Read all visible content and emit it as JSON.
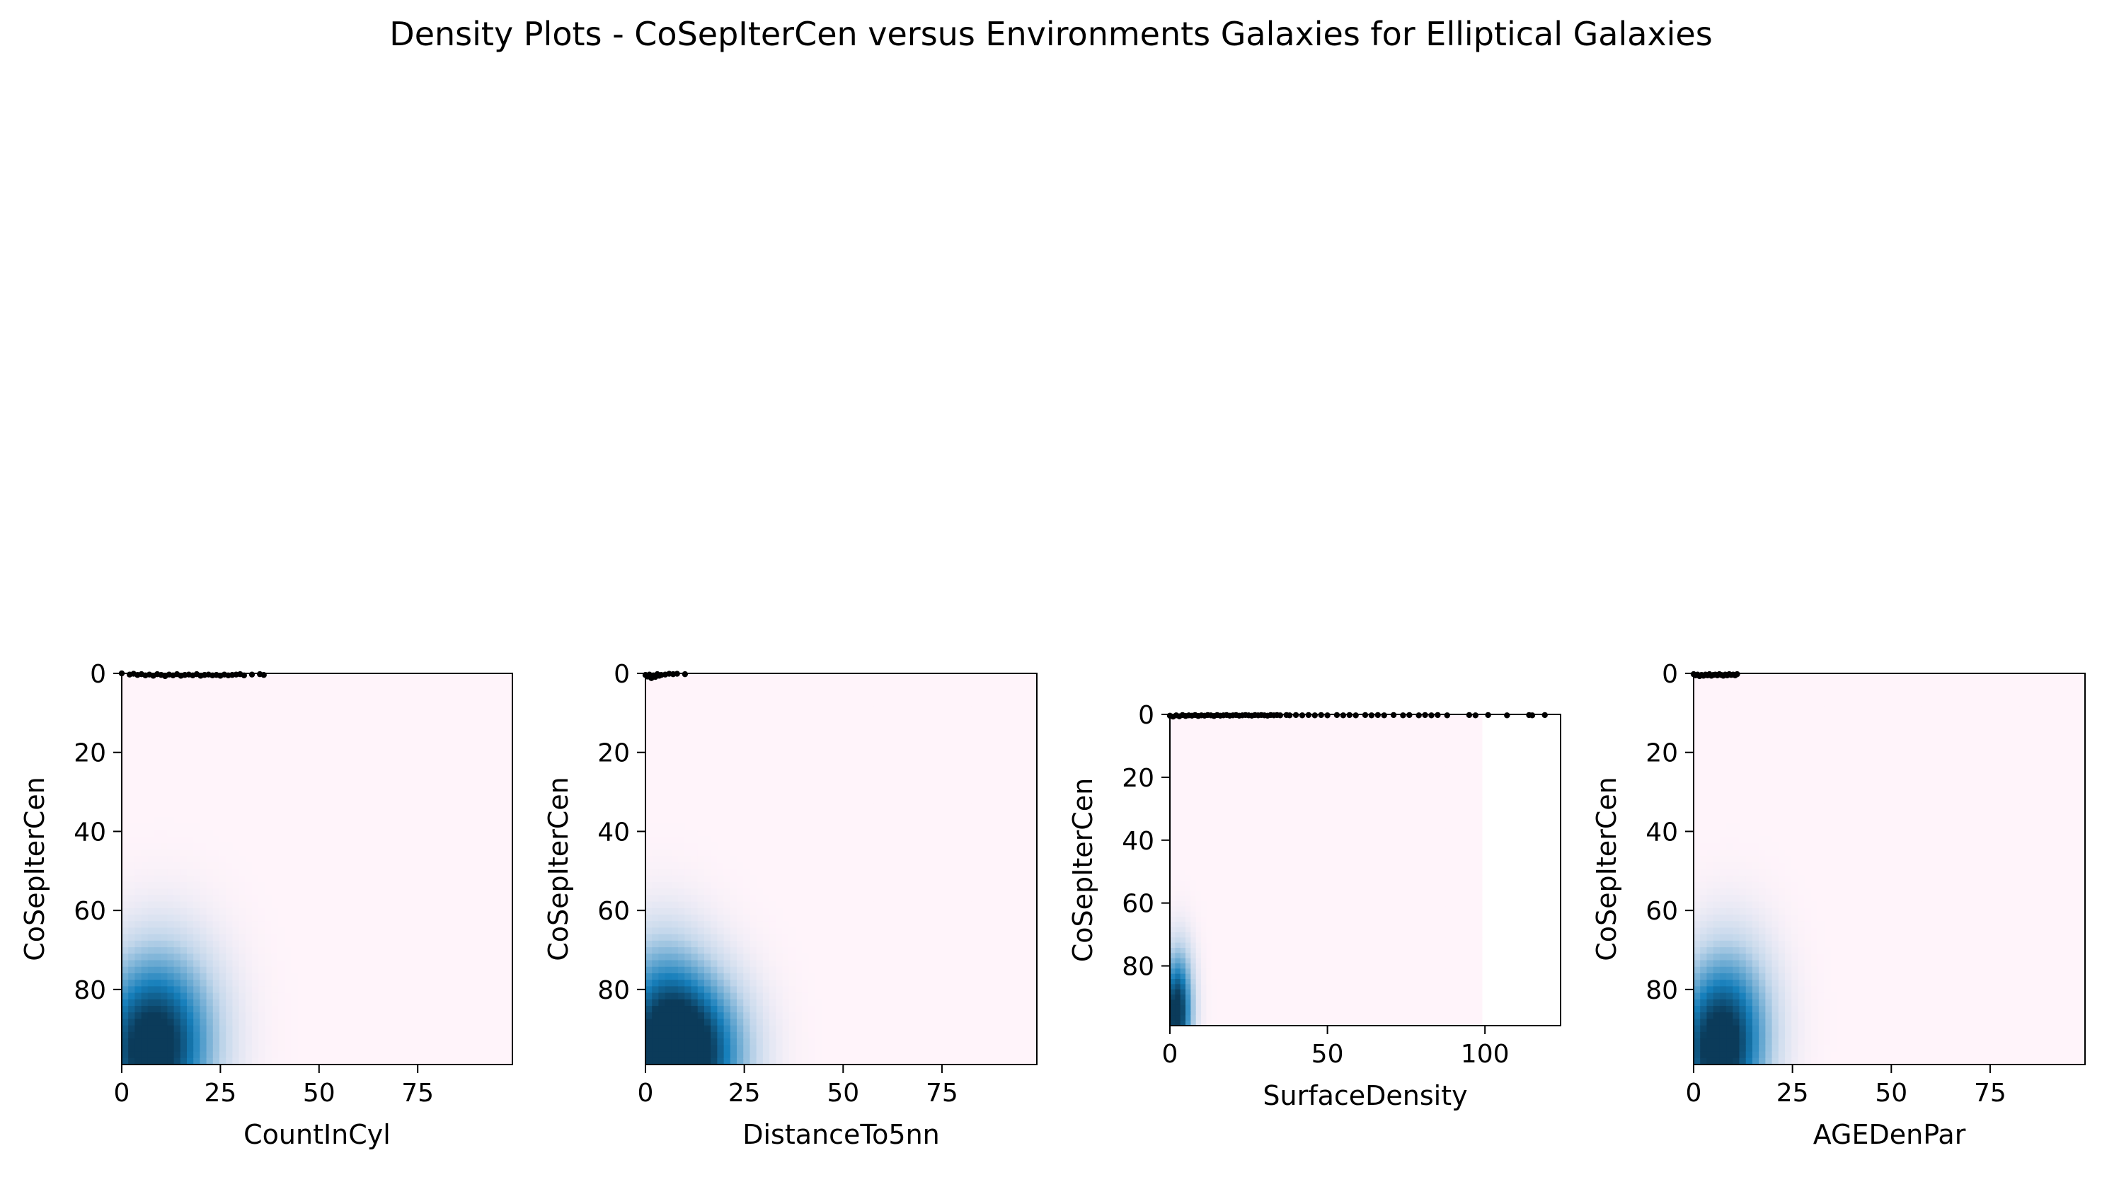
{
  "figure": {
    "title": "Density Plots - CoSepIterCen versus Environments Galaxies  for Elliptical Galaxies"
  },
  "colors": {
    "density_low": "#fff4fa",
    "density_mid": "#c3d7eb",
    "density_high": "#167fbb",
    "density_peak": "#0b3b5a",
    "points": "#000000"
  },
  "chart_data": [
    {
      "type": "heatmap",
      "xlabel": "CountInCyl",
      "ylabel": "CoSepIterCen",
      "xlim": [
        0,
        99
      ],
      "ylim": [
        99,
        0
      ],
      "xticks": [
        "0",
        "25",
        "50",
        "75"
      ],
      "xtick_values": [
        0,
        25,
        50,
        75
      ],
      "yticks": [
        "0",
        "20",
        "40",
        "60",
        "80"
      ],
      "ytick_values": [
        0,
        20,
        40,
        60,
        80
      ],
      "density_extent_x": [
        0,
        99
      ],
      "density_peaks": [
        {
          "x": 7,
          "y": 96,
          "weight": 1.0
        },
        {
          "x": 12,
          "y": 88,
          "weight": 0.25
        }
      ],
      "density_spread": {
        "sx": 9,
        "sy": 14
      },
      "points": [
        [
          0,
          0
        ],
        [
          2,
          0.3
        ],
        [
          3,
          0.1
        ],
        [
          4,
          0.4
        ],
        [
          5,
          0.2
        ],
        [
          6,
          0.5
        ],
        [
          7,
          0.3
        ],
        [
          8,
          0.6
        ],
        [
          9,
          0.2
        ],
        [
          10,
          0.4
        ],
        [
          11,
          0.7
        ],
        [
          12,
          0.3
        ],
        [
          13,
          0.5
        ],
        [
          14,
          0.2
        ],
        [
          15,
          0.6
        ],
        [
          16,
          0.4
        ],
        [
          17,
          0.3
        ],
        [
          18,
          0.5
        ],
        [
          19,
          0.2
        ],
        [
          20,
          0.6
        ],
        [
          21,
          0.4
        ],
        [
          22,
          0.3
        ],
        [
          23,
          0.5
        ],
        [
          24,
          0.4
        ],
        [
          25,
          0.6
        ],
        [
          26,
          0.3
        ],
        [
          27,
          0.5
        ],
        [
          28,
          0.4
        ],
        [
          29,
          0.3
        ],
        [
          30,
          0.2
        ],
        [
          31,
          0.5
        ],
        [
          33,
          0.3
        ],
        [
          35,
          0.2
        ],
        [
          36,
          0.4
        ]
      ]
    },
    {
      "type": "heatmap",
      "xlabel": "DistanceTo5nn",
      "ylabel": "CoSepIterCen",
      "xlim": [
        0,
        99
      ],
      "ylim": [
        99,
        0
      ],
      "xticks": [
        "0",
        "25",
        "50",
        "75"
      ],
      "xtick_values": [
        0,
        25,
        50,
        75
      ],
      "yticks": [
        "0",
        "20",
        "40",
        "60",
        "80"
      ],
      "ytick_values": [
        0,
        20,
        40,
        60,
        80
      ],
      "density_extent_x": [
        0,
        99
      ],
      "density_peaks": [
        {
          "x": 6,
          "y": 97,
          "weight": 1.0
        },
        {
          "x": 15,
          "y": 96,
          "weight": 0.55
        },
        {
          "x": 4,
          "y": 82,
          "weight": 0.35
        }
      ],
      "density_spread": {
        "sx": 8,
        "sy": 12
      },
      "points": [
        [
          0,
          0.4
        ],
        [
          0.5,
          0.8
        ],
        [
          1,
          0.3
        ],
        [
          1.5,
          1.2
        ],
        [
          2,
          0.5
        ],
        [
          2.5,
          0.9
        ],
        [
          3,
          0.2
        ],
        [
          3.5,
          0.6
        ],
        [
          4,
          0.4
        ],
        [
          5,
          0.3
        ],
        [
          6,
          0.1
        ],
        [
          7,
          0.2
        ],
        [
          8,
          0.1
        ],
        [
          10,
          0.2
        ]
      ]
    },
    {
      "type": "heatmap",
      "xlabel": "SurfaceDensity",
      "ylabel": "CoSepIterCen",
      "xlim": [
        0,
        124
      ],
      "ylim": [
        99,
        0
      ],
      "xticks": [
        "0",
        "50",
        "100"
      ],
      "xtick_values": [
        0,
        50,
        100
      ],
      "yticks": [
        "0",
        "20",
        "40",
        "60",
        "80"
      ],
      "ytick_values": [
        0,
        20,
        40,
        60,
        80
      ],
      "density_extent_x": [
        0,
        99
      ],
      "density_peaks": [
        {
          "x": 2,
          "y": 96,
          "weight": 1.0
        },
        {
          "x": 3,
          "y": 85,
          "weight": 0.25
        }
      ],
      "density_spread": {
        "sx": 3,
        "sy": 10
      },
      "points": [
        [
          0,
          0.4
        ],
        [
          1,
          0.7
        ],
        [
          2,
          0.3
        ],
        [
          3,
          0.6
        ],
        [
          4,
          0.2
        ],
        [
          5,
          0.5
        ],
        [
          6,
          0.3
        ],
        [
          7,
          0.4
        ],
        [
          8,
          0.2
        ],
        [
          9,
          0.5
        ],
        [
          10,
          0.3
        ],
        [
          11,
          0.4
        ],
        [
          12,
          0.2
        ],
        [
          13,
          0.3
        ],
        [
          14,
          0.5
        ],
        [
          15,
          0.2
        ],
        [
          16,
          0.4
        ],
        [
          17,
          0.3
        ],
        [
          18,
          0.2
        ],
        [
          19,
          0.4
        ],
        [
          20,
          0.3
        ],
        [
          21,
          0.2
        ],
        [
          22,
          0.4
        ],
        [
          23,
          0.3
        ],
        [
          24,
          0.2
        ],
        [
          25,
          0.3
        ],
        [
          26,
          0.4
        ],
        [
          27,
          0.2
        ],
        [
          28,
          0.3
        ],
        [
          29,
          0.2
        ],
        [
          30,
          0.3
        ],
        [
          31,
          0.4
        ],
        [
          32,
          0.2
        ],
        [
          33,
          0.3
        ],
        [
          34,
          0.2
        ],
        [
          35,
          0.3
        ],
        [
          37,
          0.2
        ],
        [
          38,
          0.3
        ],
        [
          40,
          0.2
        ],
        [
          42,
          0.3
        ],
        [
          44,
          0.2
        ],
        [
          46,
          0.3
        ],
        [
          48,
          0.2
        ],
        [
          50,
          0.3
        ],
        [
          53,
          0.2
        ],
        [
          55,
          0.3
        ],
        [
          57,
          0.2
        ],
        [
          59,
          0.3
        ],
        [
          62,
          0.2
        ],
        [
          64,
          0.3
        ],
        [
          66,
          0.2
        ],
        [
          68,
          0.3
        ],
        [
          71,
          0.2
        ],
        [
          74,
          0.3
        ],
        [
          76,
          0.2
        ],
        [
          79,
          0.3
        ],
        [
          81,
          0.2
        ],
        [
          83,
          0.3
        ],
        [
          85,
          0.2
        ],
        [
          88,
          0.3
        ],
        [
          95,
          0.2
        ],
        [
          97,
          0.3
        ],
        [
          101,
          0.2
        ],
        [
          107,
          0.3
        ],
        [
          114,
          0.2
        ],
        [
          115,
          0.3
        ],
        [
          119,
          0.2
        ]
      ]
    },
    {
      "type": "heatmap",
      "xlabel": "AGEDenPar",
      "ylabel": "CoSepIterCen",
      "xlim": [
        0,
        99
      ],
      "ylim": [
        99,
        0
      ],
      "xticks": [
        "0",
        "25",
        "50",
        "75"
      ],
      "xtick_values": [
        0,
        25,
        50,
        75
      ],
      "yticks": [
        "0",
        "20",
        "40",
        "60",
        "80"
      ],
      "ytick_values": [
        0,
        20,
        40,
        60,
        80
      ],
      "density_extent_x": [
        0,
        99
      ],
      "density_peaks": [
        {
          "x": 6,
          "y": 96,
          "weight": 1.0
        },
        {
          "x": 10,
          "y": 86,
          "weight": 0.3
        }
      ],
      "density_spread": {
        "sx": 7,
        "sy": 13
      },
      "points": [
        [
          0,
          0.2
        ],
        [
          0.5,
          0.5
        ],
        [
          1,
          0.3
        ],
        [
          1.5,
          0.7
        ],
        [
          2,
          0.4
        ],
        [
          2.5,
          0.6
        ],
        [
          3,
          0.3
        ],
        [
          3.5,
          0.5
        ],
        [
          4,
          0.2
        ],
        [
          4.5,
          0.6
        ],
        [
          5,
          0.4
        ],
        [
          5.5,
          0.3
        ],
        [
          6,
          0.5
        ],
        [
          6.5,
          0.2
        ],
        [
          7,
          0.4
        ],
        [
          7.5,
          0.6
        ],
        [
          8,
          0.3
        ],
        [
          8.5,
          0.5
        ],
        [
          9,
          0.2
        ],
        [
          9.5,
          0.4
        ],
        [
          10,
          0.3
        ],
        [
          10.5,
          0.5
        ],
        [
          11,
          0.2
        ]
      ]
    }
  ]
}
